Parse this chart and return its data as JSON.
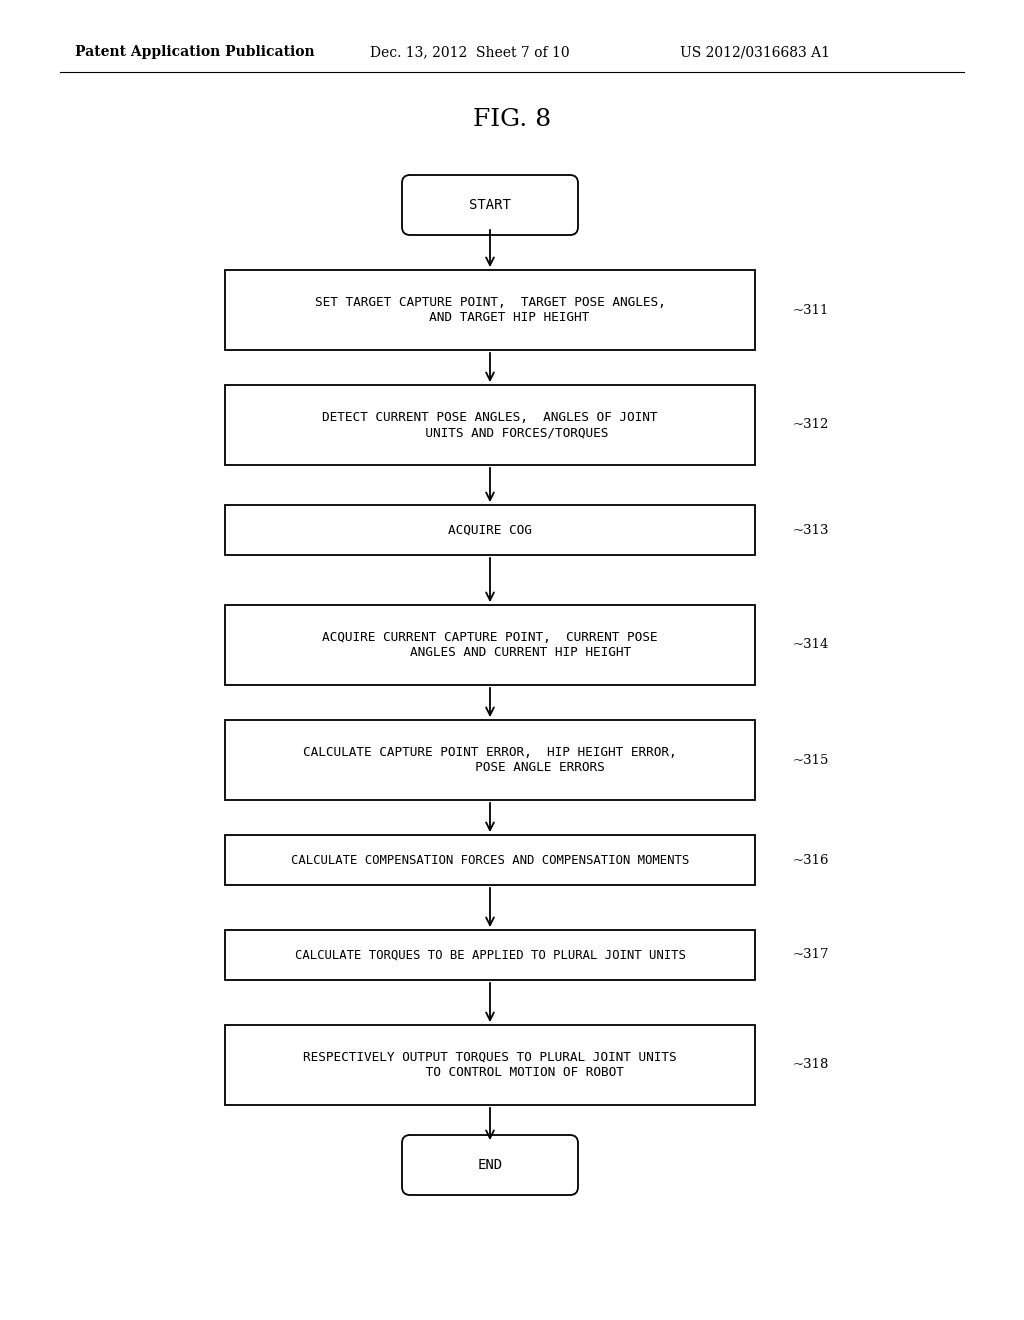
{
  "title": "FIG. 8",
  "header_left": "Patent Application Publication",
  "header_mid": "Dec. 13, 2012  Sheet 7 of 10",
  "header_right": "US 2012/0316683 A1",
  "bg_color": "#ffffff",
  "nodes": [
    {
      "id": "start",
      "type": "oval",
      "label": "START",
      "ref": null
    },
    {
      "id": "s311",
      "type": "rect",
      "label": "SET TARGET CAPTURE POINT,  TARGET POSE ANGLES,\n     AND TARGET HIP HEIGHT",
      "ref": "311"
    },
    {
      "id": "s312",
      "type": "rect",
      "label": "DETECT CURRENT POSE ANGLES,  ANGLES OF JOINT\n       UNITS AND FORCES/TORQUES",
      "ref": "312"
    },
    {
      "id": "s313",
      "type": "rect",
      "label": "ACQUIRE COG",
      "ref": "313"
    },
    {
      "id": "s314",
      "type": "rect",
      "label": "ACQUIRE CURRENT CAPTURE POINT,  CURRENT POSE\n        ANGLES AND CURRENT HIP HEIGHT",
      "ref": "314"
    },
    {
      "id": "s315",
      "type": "rect",
      "label": "CALCULATE CAPTURE POINT ERROR,  HIP HEIGHT ERROR,\n             POSE ANGLE ERRORS",
      "ref": "315"
    },
    {
      "id": "s316",
      "type": "rect",
      "label": "CALCULATE COMPENSATION FORCES AND COMPENSATION MOMENTS",
      "ref": "316"
    },
    {
      "id": "s317",
      "type": "rect",
      "label": "CALCULATE TORQUES TO BE APPLIED TO PLURAL JOINT UNITS",
      "ref": "317"
    },
    {
      "id": "s318",
      "type": "rect",
      "label": "RESPECTIVELY OUTPUT TORQUES TO PLURAL JOINT UNITS\n         TO CONTROL MOTION OF ROBOT",
      "ref": "318"
    },
    {
      "id": "end",
      "type": "oval",
      "label": "END",
      "ref": null
    }
  ]
}
